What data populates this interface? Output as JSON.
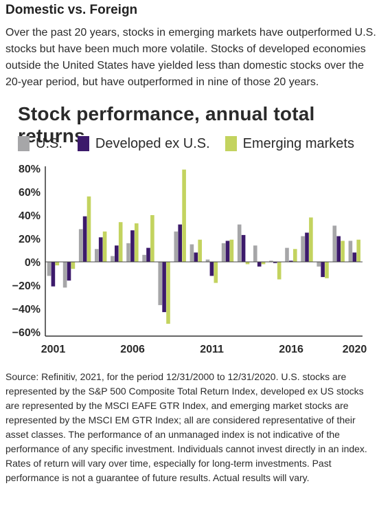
{
  "header": {
    "title": "Domestic vs. Foreign",
    "intro": "Over the past 20 years, stocks in emerging markets have outperformed U.S. stocks but have been much more volatile. Stocks of developed economies outside the United States have yielded less than domestic stocks over the 20-year period, but have outperformed in nine of those 20 years."
  },
  "chart_data": {
    "type": "bar",
    "title": "Stock performance, annual total returns",
    "x": [
      2001,
      2002,
      2003,
      2004,
      2005,
      2006,
      2007,
      2008,
      2009,
      2010,
      2011,
      2012,
      2013,
      2014,
      2015,
      2016,
      2017,
      2018,
      2019,
      2020
    ],
    "x_tick_labels": [
      "2001",
      "2006",
      "2011",
      "2016",
      "2020"
    ],
    "y_tick_labels": [
      "80%",
      "60%",
      "40%",
      "20%",
      "0%",
      "−20%",
      "−40%",
      "−60%"
    ],
    "ylim": [
      -60,
      80
    ],
    "y_unit": "%",
    "series": [
      {
        "name": "U.S.",
        "color": "#a6a6a8",
        "values": [
          -12,
          -22,
          28,
          11,
          5,
          16,
          6,
          -37,
          26,
          15,
          2,
          16,
          32,
          14,
          1,
          12,
          22,
          -4,
          31,
          18
        ]
      },
      {
        "name": "Developed ex U.S.",
        "color": "#3c1a6b",
        "values": [
          -21,
          -16,
          39,
          21,
          14,
          27,
          12,
          -43,
          32,
          8,
          -12,
          18,
          23,
          -4,
          -1,
          1,
          25,
          -13,
          22,
          8
        ]
      },
      {
        "name": "Emerging markets",
        "color": "#c3d35f",
        "values": [
          -3,
          -6,
          56,
          26,
          34,
          33,
          40,
          -53,
          79,
          19,
          -18,
          19,
          -2,
          -2,
          -15,
          11,
          38,
          -14,
          18,
          19
        ]
      }
    ],
    "grid": false,
    "legend_position": "top-left"
  },
  "footer": {
    "source": "Source: Refinitiv, 2021, for the period 12/31/2000 to 12/31/2020. U.S. stocks are represented by the S&P 500 Composite Total Return Index, developed ex US stocks are represented by the MSCI EAFE GTR Index, and emerging market stocks are represented by the MSCI EM GTR Index; all are considered representative of their asset classes. The performance of an unmanaged index is not indicative of the performance of any specific investment. Individuals cannot invest directly in an index. Rates of return will vary over time, especially for long-term investments. Past performance is not a guarantee of future results. Actual results will vary."
  }
}
